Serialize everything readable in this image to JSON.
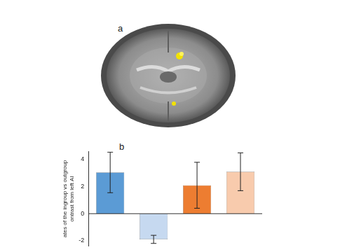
{
  "panel_labels": [
    "a",
    "b"
  ],
  "chart_data": {
    "type": "bar",
    "y_label": [
      "ates of the ingroup vs outgroup",
      "ontrast from left AI"
    ],
    "categories": [
      null,
      null,
      null,
      null
    ],
    "values": [
      3.05,
      -1.9,
      2.1,
      3.1
    ],
    "errors": [
      1.5,
      0.3,
      1.7,
      1.4
    ],
    "colors": [
      "#5b9bd5",
      "#c6d9f0",
      "#ed7d31",
      "#f8cbad"
    ],
    "ylim": [
      -2.4,
      4.6
    ],
    "yticks": [
      -2,
      0,
      2,
      4
    ],
    "grid": false,
    "tick_labels": "y"
  }
}
